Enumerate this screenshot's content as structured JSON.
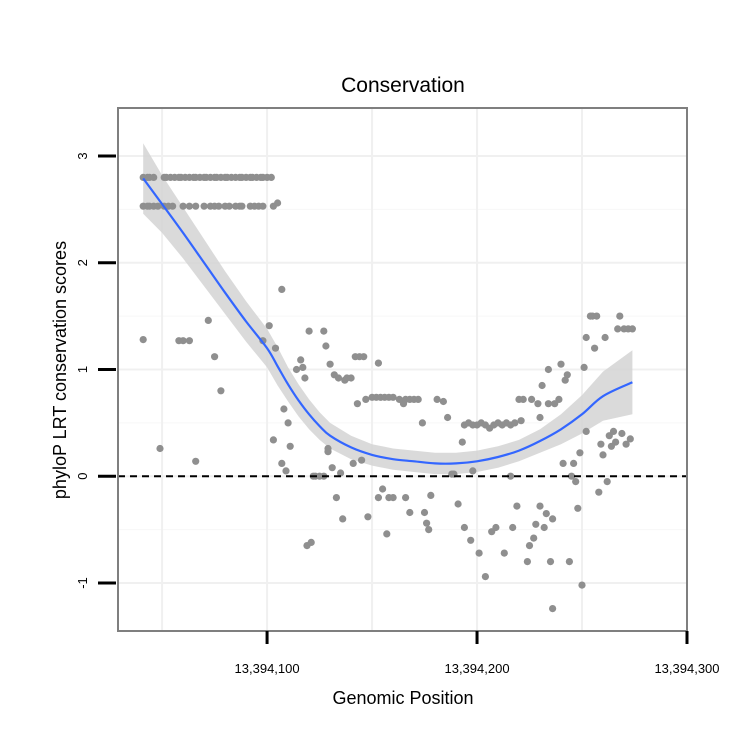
{
  "chart_data": {
    "type": "scatter",
    "title": "Conservation",
    "xlabel": "Genomic Position",
    "ylabel": "phyloP LRT conservation scores",
    "xlim": [
      13394029,
      13394300
    ],
    "ylim": [
      -1.45,
      3.45
    ],
    "x_ticks": [
      13394100,
      13394200,
      13394300
    ],
    "x_tick_labels": [
      "13,394,100",
      "13,394,200",
      "13,394,300"
    ],
    "y_ticks": [
      -1,
      0,
      1,
      2,
      3
    ],
    "y_tick_labels": [
      "-1",
      "0",
      "1",
      "2",
      "3"
    ],
    "reference_line": {
      "y": 0,
      "style": "dashed"
    },
    "grid": true,
    "colors": {
      "points": "#8f8f8f",
      "smooth": "#3366ff",
      "ribbon": "#d3d3d3",
      "grid": "#f0f0f0",
      "border": "#7f7f7f"
    },
    "points": [
      [
        13394041,
        2.8
      ],
      [
        13394043,
        2.8
      ],
      [
        13394044,
        2.8
      ],
      [
        13394046,
        2.8
      ],
      [
        13394051,
        2.8
      ],
      [
        13394052,
        2.8
      ],
      [
        13394054,
        2.8
      ],
      [
        13394056,
        2.8
      ],
      [
        13394058,
        2.8
      ],
      [
        13394059,
        2.8
      ],
      [
        13394061,
        2.8
      ],
      [
        13394063,
        2.8
      ],
      [
        13394065,
        2.8
      ],
      [
        13394066,
        2.8
      ],
      [
        13394068,
        2.8
      ],
      [
        13394070,
        2.8
      ],
      [
        13394071,
        2.8
      ],
      [
        13394073,
        2.8
      ],
      [
        13394075,
        2.8
      ],
      [
        13394076,
        2.8
      ],
      [
        13394078,
        2.8
      ],
      [
        13394080,
        2.8
      ],
      [
        13394081,
        2.8
      ],
      [
        13394083,
        2.8
      ],
      [
        13394085,
        2.8
      ],
      [
        13394087,
        2.8
      ],
      [
        13394088,
        2.8
      ],
      [
        13394090,
        2.8
      ],
      [
        13394092,
        2.8
      ],
      [
        13394093,
        2.8
      ],
      [
        13394095,
        2.8
      ],
      [
        13394097,
        2.8
      ],
      [
        13394098,
        2.8
      ],
      [
        13394100,
        2.8
      ],
      [
        13394102,
        2.8
      ],
      [
        13394041,
        2.53
      ],
      [
        13394043,
        2.53
      ],
      [
        13394044,
        2.53
      ],
      [
        13394046,
        2.53
      ],
      [
        13394048,
        2.53
      ],
      [
        13394051,
        2.53
      ],
      [
        13394053,
        2.53
      ],
      [
        13394055,
        2.53
      ],
      [
        13394060,
        2.53
      ],
      [
        13394063,
        2.53
      ],
      [
        13394066,
        2.53
      ],
      [
        13394070,
        2.53
      ],
      [
        13394073,
        2.53
      ],
      [
        13394075,
        2.53
      ],
      [
        13394077,
        2.53
      ],
      [
        13394080,
        2.53
      ],
      [
        13394082,
        2.53
      ],
      [
        13394085,
        2.53
      ],
      [
        13394087,
        2.53
      ],
      [
        13394088,
        2.53
      ],
      [
        13394092,
        2.53
      ],
      [
        13394094,
        2.53
      ],
      [
        13394096,
        2.53
      ],
      [
        13394098,
        2.53
      ],
      [
        13394103,
        2.53
      ],
      [
        13394105,
        2.56
      ],
      [
        13394041,
        1.28
      ],
      [
        13394049,
        0.26
      ],
      [
        13394058,
        1.27
      ],
      [
        13394060,
        1.27
      ],
      [
        13394063,
        1.27
      ],
      [
        13394066,
        0.14
      ],
      [
        13394072,
        1.46
      ],
      [
        13394075,
        1.12
      ],
      [
        13394078,
        0.8
      ],
      [
        13394098,
        1.27
      ],
      [
        13394101,
        1.41
      ],
      [
        13394103,
        0.34
      ],
      [
        13394104,
        1.2
      ],
      [
        13394107,
        1.75
      ],
      [
        13394107,
        0.12
      ],
      [
        13394108,
        0.63
      ],
      [
        13394109,
        0.05
      ],
      [
        13394110,
        0.5
      ],
      [
        13394111,
        0.28
      ],
      [
        13394114,
        1.0
      ],
      [
        13394116,
        1.09
      ],
      [
        13394117,
        1.02
      ],
      [
        13394118,
        0.92
      ],
      [
        13394119,
        -0.65
      ],
      [
        13394121,
        -0.62
      ],
      [
        13394120,
        1.36
      ],
      [
        13394122,
        0.0
      ],
      [
        13394123,
        0.0
      ],
      [
        13394125,
        0.0
      ],
      [
        13394127,
        1.36
      ],
      [
        13394127,
        0.0
      ],
      [
        13394128,
        1.22
      ],
      [
        13394129,
        0.26
      ],
      [
        13394129,
        0.23
      ],
      [
        13394130,
        1.05
      ],
      [
        13394131,
        0.08
      ],
      [
        13394132,
        0.95
      ],
      [
        13394133,
        -0.2
      ],
      [
        13394134,
        0.92
      ],
      [
        13394135,
        0.03
      ],
      [
        13394136,
        -0.4
      ],
      [
        13394137,
        0.9
      ],
      [
        13394138,
        0.92
      ],
      [
        13394140,
        0.92
      ],
      [
        13394142,
        1.12
      ],
      [
        13394144,
        1.12
      ],
      [
        13394146,
        1.12
      ],
      [
        13394141,
        0.12
      ],
      [
        13394143,
        0.68
      ],
      [
        13394147,
        0.72
      ],
      [
        13394145,
        0.15
      ],
      [
        13394148,
        -0.38
      ],
      [
        13394150,
        0.74
      ],
      [
        13394152,
        0.74
      ],
      [
        13394153,
        1.06
      ],
      [
        13394153,
        -0.2
      ],
      [
        13394154,
        0.74
      ],
      [
        13394155,
        -0.12
      ],
      [
        13394156,
        0.74
      ],
      [
        13394157,
        -0.54
      ],
      [
        13394158,
        -0.2
      ],
      [
        13394158,
        0.74
      ],
      [
        13394160,
        0.74
      ],
      [
        13394160,
        -0.2
      ],
      [
        13394163,
        0.72
      ],
      [
        13394165,
        0.68
      ],
      [
        13394166,
        0.72
      ],
      [
        13394168,
        0.72
      ],
      [
        13394166,
        -0.2
      ],
      [
        13394168,
        -0.34
      ],
      [
        13394170,
        0.72
      ],
      [
        13394172,
        0.72
      ],
      [
        13394174,
        0.5
      ],
      [
        13394175,
        -0.34
      ],
      [
        13394176,
        -0.44
      ],
      [
        13394177,
        -0.5
      ],
      [
        13394178,
        -0.18
      ],
      [
        13394181,
        0.72
      ],
      [
        13394184,
        0.7
      ],
      [
        13394186,
        0.55
      ],
      [
        13394188,
        0.02
      ],
      [
        13394189,
        0.02
      ],
      [
        13394191,
        -0.26
      ],
      [
        13394193,
        0.32
      ],
      [
        13394194,
        0.48
      ],
      [
        13394194,
        -0.48
      ],
      [
        13394196,
        0.5
      ],
      [
        13394197,
        -0.6
      ],
      [
        13394198,
        0.48
      ],
      [
        13394198,
        0.05
      ],
      [
        13394200,
        0.48
      ],
      [
        13394201,
        -0.72
      ],
      [
        13394202,
        0.5
      ],
      [
        13394204,
        0.48
      ],
      [
        13394204,
        -0.94
      ],
      [
        13394206,
        0.45
      ],
      [
        13394207,
        -0.52
      ],
      [
        13394208,
        0.48
      ],
      [
        13394209,
        -0.48
      ],
      [
        13394210,
        0.5
      ],
      [
        13394212,
        0.48
      ],
      [
        13394213,
        -0.72
      ],
      [
        13394214,
        0.5
      ],
      [
        13394216,
        0.48
      ],
      [
        13394216,
        0.0
      ],
      [
        13394217,
        -0.48
      ],
      [
        13394218,
        0.5
      ],
      [
        13394219,
        -0.28
      ],
      [
        13394220,
        0.72
      ],
      [
        13394221,
        0.52
      ],
      [
        13394222,
        0.72
      ],
      [
        13394224,
        -0.8
      ],
      [
        13394225,
        -0.65
      ],
      [
        13394226,
        0.72
      ],
      [
        13394227,
        -0.58
      ],
      [
        13394228,
        -0.45
      ],
      [
        13394229,
        0.68
      ],
      [
        13394230,
        0.55
      ],
      [
        13394230,
        -0.28
      ],
      [
        13394231,
        0.85
      ],
      [
        13394232,
        -0.48
      ],
      [
        13394233,
        -0.35
      ],
      [
        13394234,
        0.68
      ],
      [
        13394234,
        1.0
      ],
      [
        13394235,
        -0.8
      ],
      [
        13394236,
        -1.24
      ],
      [
        13394236,
        -0.4
      ],
      [
        13394237,
        0.68
      ],
      [
        13394239,
        0.72
      ],
      [
        13394240,
        1.05
      ],
      [
        13394241,
        0.12
      ],
      [
        13394242,
        0.9
      ],
      [
        13394243,
        0.95
      ],
      [
        13394244,
        -0.8
      ],
      [
        13394245,
        0.0
      ],
      [
        13394246,
        0.12
      ],
      [
        13394247,
        -0.05
      ],
      [
        13394248,
        -0.3
      ],
      [
        13394249,
        0.22
      ],
      [
        13394250,
        -1.02
      ],
      [
        13394251,
        1.02
      ],
      [
        13394252,
        0.42
      ],
      [
        13394252,
        1.3
      ],
      [
        13394254,
        1.5
      ],
      [
        13394255,
        1.5
      ],
      [
        13394256,
        1.2
      ],
      [
        13394257,
        1.5
      ],
      [
        13394258,
        -0.15
      ],
      [
        13394259,
        0.3
      ],
      [
        13394260,
        0.2
      ],
      [
        13394261,
        1.3
      ],
      [
        13394262,
        -0.05
      ],
      [
        13394263,
        0.38
      ],
      [
        13394264,
        0.28
      ],
      [
        13394265,
        0.42
      ],
      [
        13394266,
        0.32
      ],
      [
        13394267,
        1.38
      ],
      [
        13394268,
        1.5
      ],
      [
        13394269,
        0.4
      ],
      [
        13394270,
        1.38
      ],
      [
        13394271,
        0.3
      ],
      [
        13394272,
        1.38
      ],
      [
        13394273,
        0.35
      ],
      [
        13394274,
        1.38
      ]
    ],
    "smooth_curve": [
      [
        13394041,
        2.79
      ],
      [
        13394050,
        2.55
      ],
      [
        13394060,
        2.28
      ],
      [
        13394070,
        2.0
      ],
      [
        13394080,
        1.72
      ],
      [
        13394090,
        1.45
      ],
      [
        13394100,
        1.2
      ],
      [
        13394105,
        1.03
      ],
      [
        13394110,
        0.86
      ],
      [
        13394115,
        0.71
      ],
      [
        13394120,
        0.58
      ],
      [
        13394125,
        0.47
      ],
      [
        13394130,
        0.38
      ],
      [
        13394140,
        0.27
      ],
      [
        13394150,
        0.2
      ],
      [
        13394160,
        0.16
      ],
      [
        13394170,
        0.14
      ],
      [
        13394180,
        0.12
      ],
      [
        13394190,
        0.12
      ],
      [
        13394200,
        0.14
      ],
      [
        13394210,
        0.18
      ],
      [
        13394220,
        0.24
      ],
      [
        13394230,
        0.33
      ],
      [
        13394240,
        0.44
      ],
      [
        13394250,
        0.58
      ],
      [
        13394260,
        0.75
      ],
      [
        13394274,
        0.88
      ]
    ],
    "ribbon_upper": [
      [
        13394041,
        3.12
      ],
      [
        13394050,
        2.82
      ],
      [
        13394060,
        2.52
      ],
      [
        13394070,
        2.22
      ],
      [
        13394080,
        1.92
      ],
      [
        13394090,
        1.64
      ],
      [
        13394100,
        1.38
      ],
      [
        13394105,
        1.21
      ],
      [
        13394110,
        1.02
      ],
      [
        13394115,
        0.86
      ],
      [
        13394120,
        0.72
      ],
      [
        13394125,
        0.6
      ],
      [
        13394130,
        0.5
      ],
      [
        13394140,
        0.38
      ],
      [
        13394150,
        0.3
      ],
      [
        13394160,
        0.26
      ],
      [
        13394170,
        0.24
      ],
      [
        13394180,
        0.22
      ],
      [
        13394190,
        0.22
      ],
      [
        13394200,
        0.24
      ],
      [
        13394210,
        0.28
      ],
      [
        13394220,
        0.34
      ],
      [
        13394230,
        0.44
      ],
      [
        13394240,
        0.58
      ],
      [
        13394250,
        0.76
      ],
      [
        13394260,
        0.98
      ],
      [
        13394274,
        1.18
      ]
    ],
    "ribbon_lower": [
      [
        13394041,
        2.46
      ],
      [
        13394050,
        2.28
      ],
      [
        13394060,
        2.04
      ],
      [
        13394070,
        1.78
      ],
      [
        13394080,
        1.52
      ],
      [
        13394090,
        1.26
      ],
      [
        13394100,
        1.02
      ],
      [
        13394105,
        0.85
      ],
      [
        13394110,
        0.7
      ],
      [
        13394115,
        0.56
      ],
      [
        13394120,
        0.44
      ],
      [
        13394125,
        0.34
      ],
      [
        13394130,
        0.26
      ],
      [
        13394140,
        0.16
      ],
      [
        13394150,
        0.1
      ],
      [
        13394160,
        0.06
      ],
      [
        13394170,
        0.04
      ],
      [
        13394180,
        0.02
      ],
      [
        13394190,
        0.02
      ],
      [
        13394200,
        0.04
      ],
      [
        13394210,
        0.08
      ],
      [
        13394220,
        0.14
      ],
      [
        13394230,
        0.22
      ],
      [
        13394240,
        0.3
      ],
      [
        13394250,
        0.4
      ],
      [
        13394260,
        0.52
      ],
      [
        13394274,
        0.58
      ]
    ]
  }
}
